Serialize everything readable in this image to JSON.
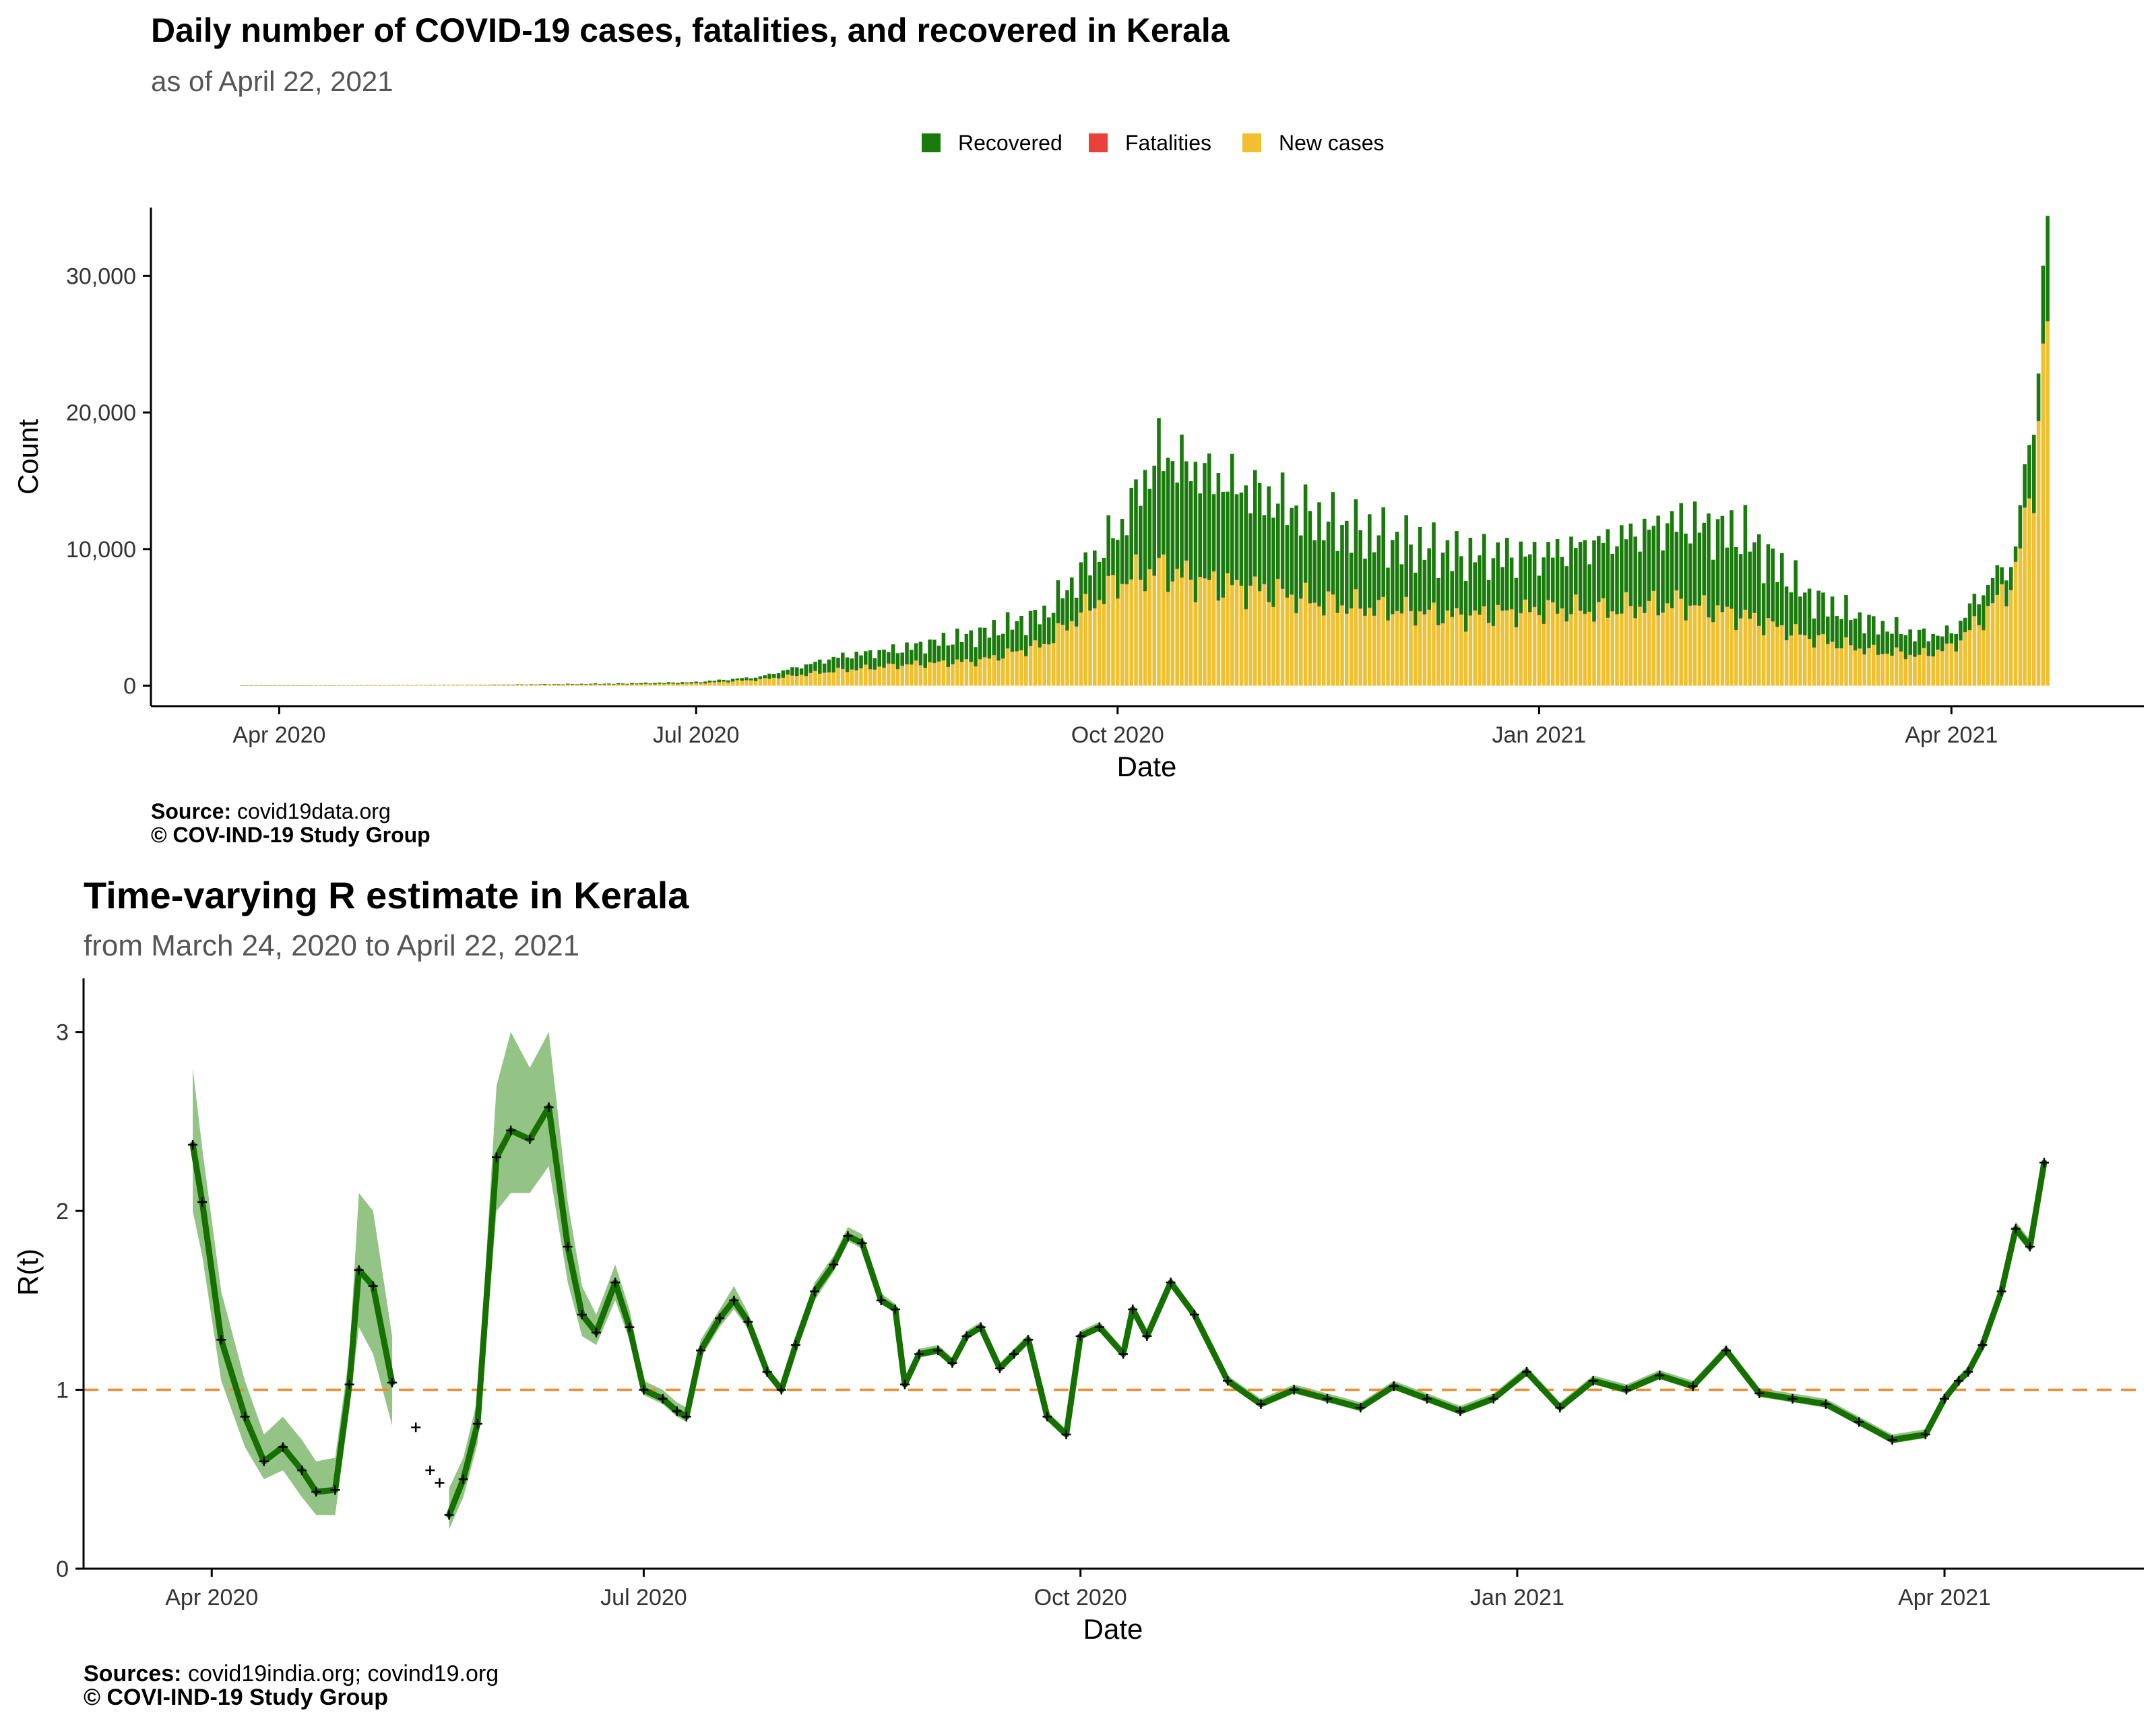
{
  "colors": {
    "recovered": "#1a7a0c",
    "fatalities": "#e8413a",
    "new_cases": "#f0c030",
    "rt_line": "#157000",
    "rt_band": "#80b870",
    "reference_line": "#f08c30",
    "axis": "#000000",
    "tick_label": "#333333",
    "subtitle": "#555555"
  },
  "chart_data": [
    {
      "type": "bar",
      "stacked": true,
      "title": "Daily number of COVID-19 cases, fatalities, and recovered in Kerala",
      "subtitle": "as of April 22, 2021",
      "xlabel": "Date",
      "ylabel": "Count",
      "x_range": [
        "2020-03-04",
        "2021-05-13"
      ],
      "ylim": [
        -1500,
        35000
      ],
      "y_ticks": [
        0,
        10000,
        20000,
        30000
      ],
      "y_tick_labels": [
        "0",
        "10,000",
        "20,000",
        "30,000"
      ],
      "x_ticks": [
        "2020-04-01",
        "2020-07-01",
        "2020-10-01",
        "2021-01-01",
        "2021-04-01"
      ],
      "x_tick_labels": [
        "Apr 2020",
        "Jul 2020",
        "Oct 2020",
        "Jan 2021",
        "Apr 2021"
      ],
      "grid": false,
      "legend_position": "top",
      "legend": [
        {
          "name": "Recovered",
          "color_key": "recovered"
        },
        {
          "name": "Fatalities",
          "color_key": "fatalities"
        },
        {
          "name": "New cases",
          "color_key": "new_cases"
        }
      ],
      "series_daily_weekly_keypoints": {
        "description": "Daily counts, anchor dates with values; intermediate days follow the curve",
        "dates": [
          "2020-03-24",
          "2020-05-15",
          "2020-06-15",
          "2020-07-01",
          "2020-07-15",
          "2020-08-01",
          "2020-08-15",
          "2020-09-01",
          "2020-09-15",
          "2020-10-01",
          "2020-10-10",
          "2020-10-20",
          "2020-11-01",
          "2020-11-15",
          "2020-12-01",
          "2020-12-15",
          "2021-01-01",
          "2021-01-15",
          "2021-02-01",
          "2021-02-15",
          "2021-03-01",
          "2021-03-15",
          "2021-03-25",
          "2021-04-01",
          "2021-04-08",
          "2021-04-15",
          "2021-04-18",
          "2021-04-20",
          "2021-04-22"
        ],
        "new_cases": [
          10,
          40,
          100,
          160,
          450,
          1100,
          1500,
          1800,
          3000,
          7500,
          8500,
          7500,
          7000,
          6000,
          5500,
          5000,
          5500,
          5500,
          6000,
          5000,
          3500,
          2500,
          2200,
          2800,
          5000,
          8000,
          14000,
          18000,
          27000
        ],
        "recovered": [
          5,
          20,
          60,
          100,
          200,
          1000,
          1200,
          2000,
          2200,
          3800,
          8500,
          8000,
          7000,
          6000,
          5000,
          4500,
          4000,
          5000,
          6000,
          6000,
          3000,
          2000,
          1500,
          1000,
          2000,
          1500,
          4500,
          4500,
          6500
        ],
        "fatalities": [
          0,
          0,
          1,
          2,
          3,
          10,
          12,
          15,
          20,
          25,
          28,
          25,
          25,
          30,
          27,
          25,
          25,
          22,
          20,
          18,
          15,
          13,
          12,
          10,
          15,
          20,
          25,
          28,
          30
        ]
      }
    },
    {
      "type": "line",
      "title": "Time-varying R estimate in Kerala",
      "subtitle": "from March 24, 2020 to April 22, 2021",
      "xlabel": "Date",
      "ylabel": "R(t)",
      "x_range": [
        "2020-03-05",
        "2021-05-13"
      ],
      "ylim": [
        0,
        3.3
      ],
      "y_ticks": [
        0,
        1,
        2,
        3
      ],
      "y_tick_labels": [
        "0",
        "1",
        "2",
        "3"
      ],
      "x_ticks": [
        "2020-04-01",
        "2020-07-01",
        "2020-10-01",
        "2021-01-01",
        "2021-04-01"
      ],
      "x_tick_labels": [
        "Apr 2020",
        "Jul 2020",
        "Oct 2020",
        "Jan 2021",
        "Apr 2021"
      ],
      "grid": false,
      "reference_line": {
        "y": 1,
        "style": "dashed",
        "color_key": "reference_line"
      },
      "band": "95% interval around R(t)",
      "series": [
        {
          "x": [
            "2020-03-28",
            "2020-03-30",
            "2020-04-03",
            "2020-04-08",
            "2020-04-12",
            "2020-04-16",
            "2020-04-20",
            "2020-04-23",
            "2020-04-27",
            "2020-04-30",
            "2020-05-02",
            "2020-05-05",
            "2020-05-09",
            "2020-05-14",
            "2020-05-17",
            "2020-05-19",
            "2020-05-21",
            "2020-05-24",
            "2020-05-27",
            "2020-05-31",
            "2020-06-03",
            "2020-06-07",
            "2020-06-11",
            "2020-06-15",
            "2020-06-18",
            "2020-06-21",
            "2020-06-25",
            "2020-06-28",
            "2020-07-01",
            "2020-07-05",
            "2020-07-08",
            "2020-07-10",
            "2020-07-13",
            "2020-07-17",
            "2020-07-20",
            "2020-07-23",
            "2020-07-27",
            "2020-07-30",
            "2020-08-02",
            "2020-08-06",
            "2020-08-10",
            "2020-08-13",
            "2020-08-16",
            "2020-08-20",
            "2020-08-23",
            "2020-08-25",
            "2020-08-28",
            "2020-09-01",
            "2020-09-04",
            "2020-09-07",
            "2020-09-10",
            "2020-09-14",
            "2020-09-17",
            "2020-09-20",
            "2020-09-24",
            "2020-09-28",
            "2020-10-01",
            "2020-10-05",
            "2020-10-10",
            "2020-10-12",
            "2020-10-15",
            "2020-10-20",
            "2020-10-25",
            "2020-11-01",
            "2020-11-08",
            "2020-11-15",
            "2020-11-22",
            "2020-11-29",
            "2020-12-06",
            "2020-12-13",
            "2020-12-20",
            "2020-12-27",
            "2021-01-03",
            "2021-01-10",
            "2021-01-17",
            "2021-01-24",
            "2021-01-31",
            "2021-02-07",
            "2021-02-14",
            "2021-02-21",
            "2021-02-28",
            "2021-03-07",
            "2021-03-14",
            "2021-03-21",
            "2021-03-28",
            "2021-04-01",
            "2021-04-04",
            "2021-04-06",
            "2021-04-09",
            "2021-04-13",
            "2021-04-16",
            "2021-04-19",
            "2021-04-22"
          ],
          "y": [
            2.37,
            2.05,
            1.28,
            0.85,
            0.6,
            0.68,
            0.55,
            0.43,
            0.44,
            1.03,
            1.67,
            1.58,
            1.04,
            0.79,
            0.55,
            0.48,
            0.3,
            0.5,
            0.81,
            2.3,
            2.45,
            2.4,
            2.58,
            1.8,
            1.42,
            1.32,
            1.6,
            1.35,
            1.0,
            0.95,
            0.88,
            0.85,
            1.22,
            1.4,
            1.5,
            1.38,
            1.1,
            1.0,
            1.25,
            1.55,
            1.7,
            1.86,
            1.82,
            1.5,
            1.45,
            1.03,
            1.2,
            1.22,
            1.15,
            1.3,
            1.35,
            1.12,
            1.2,
            1.28,
            0.85,
            0.75,
            1.3,
            1.35,
            1.2,
            1.45,
            1.3,
            1.6,
            1.42,
            1.05,
            0.92,
            1.0,
            0.95,
            0.9,
            1.02,
            0.95,
            0.88,
            0.95,
            1.1,
            0.9,
            1.05,
            1.0,
            1.08,
            1.02,
            1.22,
            0.98,
            0.95,
            0.92,
            0.82,
            0.72,
            0.75,
            0.95,
            1.05,
            1.1,
            1.25,
            1.55,
            1.9,
            1.8,
            2.27
          ],
          "low": [
            2.0,
            1.75,
            1.05,
            0.68,
            0.5,
            0.55,
            0.4,
            0.3,
            0.3,
            0.9,
            1.35,
            1.2,
            0.8,
            null,
            null,
            null,
            0.22,
            0.4,
            0.7,
            2.0,
            2.1,
            2.1,
            2.25,
            1.6,
            1.3,
            1.25,
            1.5,
            1.28,
            0.97,
            0.92,
            0.85,
            0.82,
            1.18,
            1.35,
            1.45,
            1.34,
            1.08,
            0.98,
            1.22,
            1.5,
            1.66,
            1.83,
            1.79,
            1.48,
            1.43,
            1.01,
            1.18,
            1.2,
            1.13,
            1.28,
            1.33,
            1.1,
            1.18,
            1.26,
            0.83,
            0.73,
            1.28,
            1.33,
            1.18,
            1.43,
            1.28,
            1.57,
            1.4,
            1.03,
            0.9,
            0.98,
            0.93,
            0.88,
            1.0,
            0.93,
            0.86,
            0.93,
            1.08,
            0.88,
            1.03,
            0.98,
            1.06,
            1.0,
            1.2,
            0.96,
            0.93,
            0.9,
            0.8,
            0.7,
            0.73,
            0.93,
            1.03,
            1.08,
            1.23,
            1.53,
            1.87,
            1.77,
            2.25
          ],
          "high": [
            2.8,
            2.35,
            1.55,
            1.05,
            0.75,
            0.85,
            0.72,
            0.6,
            0.62,
            1.2,
            2.1,
            2.0,
            1.3,
            null,
            null,
            null,
            0.45,
            0.62,
            0.95,
            2.7,
            3.0,
            2.8,
            3.0,
            2.05,
            1.58,
            1.42,
            1.7,
            1.45,
            1.05,
            1.0,
            0.93,
            0.9,
            1.28,
            1.45,
            1.58,
            1.43,
            1.13,
            1.03,
            1.3,
            1.6,
            1.75,
            1.91,
            1.87,
            1.54,
            1.48,
            1.06,
            1.23,
            1.25,
            1.18,
            1.33,
            1.38,
            1.15,
            1.23,
            1.31,
            0.88,
            0.78,
            1.33,
            1.38,
            1.23,
            1.48,
            1.33,
            1.63,
            1.45,
            1.08,
            0.95,
            1.03,
            0.98,
            0.93,
            1.05,
            0.98,
            0.91,
            0.98,
            1.13,
            0.93,
            1.08,
            1.03,
            1.11,
            1.05,
            1.25,
            1.01,
            0.98,
            0.95,
            0.85,
            0.75,
            0.78,
            0.98,
            1.08,
            1.13,
            1.28,
            1.58,
            1.94,
            1.84,
            2.3
          ]
        }
      ]
    }
  ],
  "captions": {
    "top": {
      "source_label": "Source:",
      "source_text": " covid19data.org",
      "credit": "© COV-IND-19 Study Group"
    },
    "bottom": {
      "source_label": "Sources:",
      "source_text": " covid19india.org; covind19.org",
      "credit": "© COVI-IND-19 Study Group"
    }
  }
}
